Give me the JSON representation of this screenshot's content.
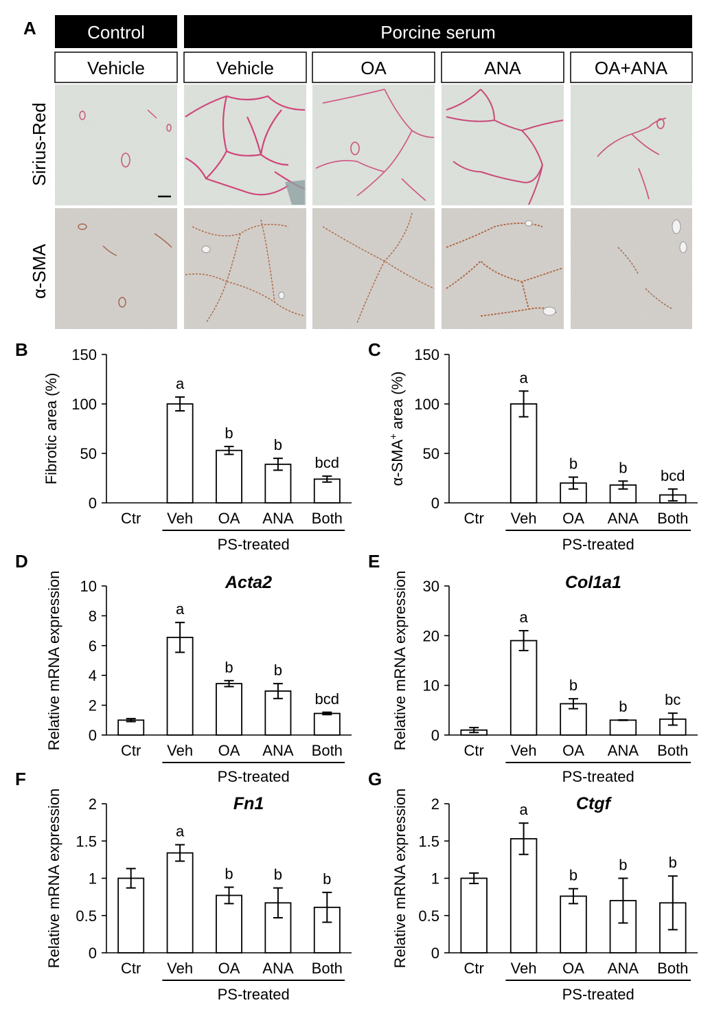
{
  "panel_a": {
    "letter": "A",
    "control_header": "Control",
    "porcine_header": "Porcine serum",
    "row_labels": [
      "Sirius-Red",
      "α-SMA"
    ],
    "columns": [
      "Vehicle",
      "Vehicle",
      "OA",
      "ANA",
      "OA+ANA"
    ]
  },
  "chart_data": [
    {
      "panel": "B",
      "type": "bar",
      "title": "",
      "ylabel": "Fibrotic area (%)",
      "ylabel_superscript": "",
      "ylabel_after": "",
      "categories": [
        "Ctr",
        "Veh",
        "OA",
        "ANA",
        "Both"
      ],
      "values": [
        0,
        100,
        53,
        39,
        24
      ],
      "errors": [
        0,
        7,
        4,
        6,
        3
      ],
      "significance": [
        "",
        "a",
        "b",
        "b",
        "bcd"
      ],
      "ylim": [
        0,
        150
      ],
      "yticks": [
        "0",
        "50",
        "100",
        "150"
      ],
      "group_label": "PS-treated",
      "bar_fill": "#ffffff",
      "bar_stroke": "#000000"
    },
    {
      "panel": "C",
      "type": "bar",
      "title": "",
      "ylabel": "α-SMA",
      "ylabel_superscript": "+",
      "ylabel_after": " area (%)",
      "categories": [
        "Ctr",
        "Veh",
        "OA",
        "ANA",
        "Both"
      ],
      "values": [
        0,
        100,
        20,
        18,
        8
      ],
      "errors": [
        0,
        13,
        6,
        4,
        6
      ],
      "significance": [
        "",
        "a",
        "b",
        "b",
        "bcd"
      ],
      "ylim": [
        0,
        150
      ],
      "yticks": [
        "0",
        "50",
        "100",
        "150"
      ],
      "group_label": "PS-treated",
      "bar_fill": "#ffffff",
      "bar_stroke": "#000000"
    },
    {
      "panel": "D",
      "type": "bar",
      "title": "Acta2",
      "ylabel": "Relative mRNA expression",
      "ylabel_superscript": "",
      "ylabel_after": "",
      "categories": [
        "Ctr",
        "Veh",
        "OA",
        "ANA",
        "Both"
      ],
      "values": [
        1.0,
        6.55,
        3.45,
        2.95,
        1.45
      ],
      "errors": [
        0.1,
        1.0,
        0.2,
        0.5,
        0.08
      ],
      "significance": [
        "",
        "a",
        "b",
        "b",
        "bcd"
      ],
      "ylim": [
        0,
        10
      ],
      "yticks": [
        "0",
        "2",
        "4",
        "6",
        "8",
        "10"
      ],
      "group_label": "PS-treated",
      "bar_fill": "#ffffff",
      "bar_stroke": "#000000"
    },
    {
      "panel": "E",
      "type": "bar",
      "title": "Col1a1",
      "ylabel": "Relative mRNA expression",
      "ylabel_superscript": "",
      "ylabel_after": "",
      "categories": [
        "Ctr",
        "Veh",
        "OA",
        "ANA",
        "Both"
      ],
      "values": [
        1.0,
        19.0,
        6.3,
        3.0,
        3.2
      ],
      "errors": [
        0.5,
        2.0,
        1.0,
        0.05,
        1.2
      ],
      "significance": [
        "",
        "a",
        "b",
        "b",
        "bc"
      ],
      "ylim": [
        0,
        30
      ],
      "yticks": [
        "0",
        "10",
        "20",
        "30"
      ],
      "group_label": "PS-treated",
      "bar_fill": "#ffffff",
      "bar_stroke": "#000000"
    },
    {
      "panel": "F",
      "type": "bar",
      "title": "Fn1",
      "ylabel": "Relative mRNA expression",
      "ylabel_superscript": "",
      "ylabel_after": "",
      "categories": [
        "Ctr",
        "Veh",
        "OA",
        "ANA",
        "Both"
      ],
      "values": [
        1.0,
        1.34,
        0.77,
        0.67,
        0.61
      ],
      "errors": [
        0.13,
        0.11,
        0.11,
        0.2,
        0.2
      ],
      "significance": [
        "",
        "a",
        "b",
        "b",
        "b"
      ],
      "ylim": [
        0,
        2
      ],
      "yticks": [
        "0",
        "0.5",
        "1",
        "1.5",
        "2"
      ],
      "group_label": "PS-treated",
      "bar_fill": "#ffffff",
      "bar_stroke": "#000000"
    },
    {
      "panel": "G",
      "type": "bar",
      "title": "Ctgf",
      "ylabel": "Relative mRNA expression",
      "ylabel_superscript": "",
      "ylabel_after": "",
      "categories": [
        "Ctr",
        "Veh",
        "OA",
        "ANA",
        "Both"
      ],
      "values": [
        1.0,
        1.53,
        0.76,
        0.7,
        0.67
      ],
      "errors": [
        0.07,
        0.21,
        0.1,
        0.3,
        0.36
      ],
      "significance": [
        "",
        "a",
        "b",
        "b",
        "b"
      ],
      "ylim": [
        0,
        2
      ],
      "yticks": [
        "0",
        "0.5",
        "1",
        "1.5",
        "2"
      ],
      "group_label": "PS-treated",
      "bar_fill": "#ffffff",
      "bar_stroke": "#000000"
    }
  ]
}
